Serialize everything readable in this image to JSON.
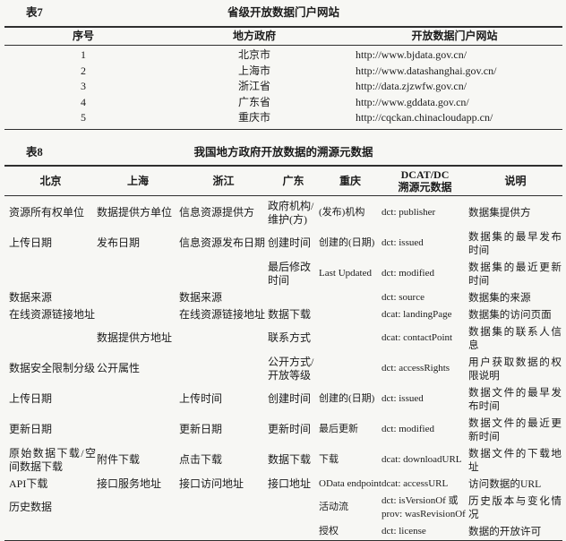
{
  "table7": {
    "label": "表7",
    "title": "省级开放数据门户网站",
    "headers": [
      "序号",
      "地方政府",
      "开放数据门户网站"
    ],
    "rows": [
      {
        "no": "1",
        "gov": "北京市",
        "url": "http://www.bjdata.gov.cn/"
      },
      {
        "no": "2",
        "gov": "上海市",
        "url": "http://www.datashanghai.gov.cn/"
      },
      {
        "no": "3",
        "gov": "浙江省",
        "url": "http://data.zjzwfw.gov.cn/"
      },
      {
        "no": "4",
        "gov": "广东省",
        "url": "http://www.gddata.gov.cn/"
      },
      {
        "no": "5",
        "gov": "重庆市",
        "url": "http://cqckan.chinacloudapp.cn/"
      }
    ]
  },
  "table8": {
    "label": "表8",
    "title": "我国地方政府开放数据的溯源元数据",
    "headers": [
      "北京",
      "上海",
      "浙江",
      "广东",
      "重庆",
      "DCAT/DC\n溯源元数据",
      "说明"
    ],
    "rows": [
      [
        "资源所有权单位",
        "数据提供方单位",
        "信息资源提供方",
        "政府机构/维护(方)",
        "(发布)机构",
        "dct: publisher",
        "数据集提供方"
      ],
      [
        "上传日期",
        "发布日期",
        "信息资源发布日期",
        "创建时间",
        "创建的(日期)",
        "dct: issued",
        "数据集的最早发布时间"
      ],
      [
        "",
        "",
        "",
        "最后修改时间",
        "Last Updated",
        "dct: modified",
        "数据集的最近更新时间"
      ],
      [
        "数据来源",
        "",
        "数据来源",
        "",
        "",
        "dct: source",
        "数据集的来源"
      ],
      [
        "在线资源链接地址",
        "",
        "在线资源链接地址",
        "数据下载",
        "",
        "dcat: landingPage",
        "数据集的访问页面"
      ],
      [
        "",
        "数据提供方地址",
        "",
        "联系方式",
        "",
        "dcat: contactPoint",
        "数据集的联系人信息"
      ],
      [
        "数据安全限制分级",
        "公开属性",
        "",
        "公开方式/开放等级",
        "",
        "dct: accessRights",
        "用户获取数据的权限说明"
      ],
      [
        "上传日期",
        "",
        "上传时间",
        "创建时间",
        "创建的(日期)",
        "dct: issued",
        "数据文件的最早发布时间"
      ],
      [
        "更新日期",
        "",
        "更新日期",
        "更新时间",
        "最后更新",
        "dct: modified",
        "数据文件的最近更新时间"
      ],
      [
        "原始数据下载/空间数据下载",
        "附件下载",
        "点击下载",
        "数据下载",
        "下载",
        "dcat: downloadURL",
        "数据文件的下载地址"
      ],
      [
        "API下载",
        "接口服务地址",
        "接口访问地址",
        "接口地址",
        "OData endpoint",
        "dcat: accessURL",
        "访问数据的URL"
      ],
      [
        "历史数据",
        "",
        "",
        "",
        "活动流",
        "dct: isVersionOf 或\nprov: wasRevisionOf",
        "历史版本与变化情况"
      ],
      [
        "",
        "",
        "",
        "",
        "授权",
        "dct: license",
        "数据的开放许可"
      ]
    ]
  }
}
